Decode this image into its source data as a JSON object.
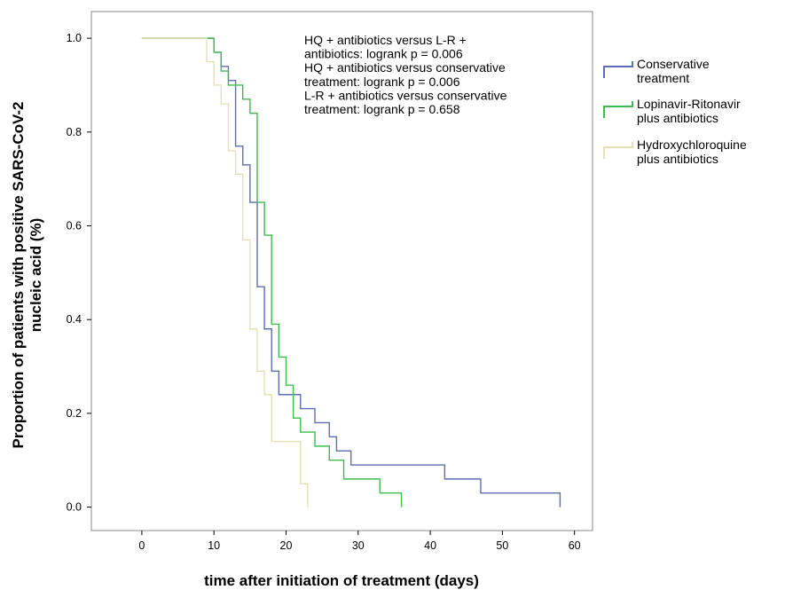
{
  "chart_data": {
    "type": "line",
    "step": true,
    "title": "",
    "xlabel": "time after initiation of treatment (days)",
    "ylabel_lines": [
      "Proportion of patients with positive SARS-CoV-2",
      "nucleic acid (%)"
    ],
    "xlim": [
      -7,
      62.5
    ],
    "ylim": [
      -0.05,
      1.057
    ],
    "x_ticks": [
      0,
      10,
      20,
      30,
      40,
      50,
      60
    ],
    "x_tick_labels": [
      "0",
      "10",
      "20",
      "30",
      "40",
      "50",
      "60"
    ],
    "y_ticks": [
      0.0,
      0.2,
      0.4,
      0.6,
      0.8,
      1.0
    ],
    "y_tick_labels": [
      "0.0",
      "0.2",
      "0.4",
      "0.6",
      "0.8",
      "1.0"
    ],
    "grid": false,
    "legend_position": "outside-right",
    "annotation_lines": [
      "HQ + antibiotics versus L-R +",
      "antibiotics: logrank p = 0.006",
      "HQ + antibiotics versus conservative",
      "treatment: logrank p = 0.006",
      "L-R + antibiotics versus conservative",
      "treatment: logrank p = 0.658"
    ],
    "series": [
      {
        "name_lines": [
          "Conservative",
          "treatment"
        ],
        "color": "#5b6dbb",
        "points": [
          [
            0,
            1.0
          ],
          [
            10,
            1.0
          ],
          [
            10,
            0.97
          ],
          [
            11,
            0.97
          ],
          [
            11,
            0.94
          ],
          [
            12,
            0.94
          ],
          [
            12,
            0.91
          ],
          [
            13,
            0.91
          ],
          [
            13,
            0.77
          ],
          [
            14,
            0.77
          ],
          [
            14,
            0.73
          ],
          [
            15,
            0.73
          ],
          [
            15,
            0.65
          ],
          [
            16,
            0.65
          ],
          [
            16,
            0.47
          ],
          [
            17,
            0.47
          ],
          [
            17,
            0.38
          ],
          [
            18,
            0.38
          ],
          [
            18,
            0.29
          ],
          [
            19,
            0.29
          ],
          [
            19,
            0.24
          ],
          [
            20,
            0.24
          ],
          [
            20,
            0.24
          ],
          [
            22,
            0.24
          ],
          [
            22,
            0.21
          ],
          [
            24,
            0.21
          ],
          [
            24,
            0.18
          ],
          [
            26,
            0.18
          ],
          [
            26,
            0.15
          ],
          [
            27,
            0.15
          ],
          [
            27,
            0.12
          ],
          [
            28,
            0.12
          ],
          [
            28,
            0.12
          ],
          [
            29,
            0.12
          ],
          [
            29,
            0.09
          ],
          [
            31,
            0.09
          ],
          [
            31,
            0.09
          ],
          [
            42,
            0.09
          ],
          [
            42,
            0.06
          ],
          [
            47,
            0.06
          ],
          [
            47,
            0.03
          ],
          [
            58,
            0.03
          ],
          [
            58,
            0.0
          ]
        ]
      },
      {
        "name_lines": [
          "Lopinavir-Ritonavir",
          "plus antibiotics"
        ],
        "color": "#3dbd4c",
        "points": [
          [
            0,
            1.0
          ],
          [
            10,
            1.0
          ],
          [
            10,
            0.97
          ],
          [
            11,
            0.97
          ],
          [
            11,
            0.93
          ],
          [
            12,
            0.93
          ],
          [
            12,
            0.9
          ],
          [
            14,
            0.9
          ],
          [
            14,
            0.87
          ],
          [
            15,
            0.87
          ],
          [
            15,
            0.84
          ],
          [
            16,
            0.84
          ],
          [
            16,
            0.65
          ],
          [
            17,
            0.65
          ],
          [
            17,
            0.58
          ],
          [
            18,
            0.58
          ],
          [
            18,
            0.39
          ],
          [
            19,
            0.39
          ],
          [
            19,
            0.32
          ],
          [
            20,
            0.32
          ],
          [
            20,
            0.26
          ],
          [
            21,
            0.26
          ],
          [
            21,
            0.19
          ],
          [
            22,
            0.19
          ],
          [
            22,
            0.16
          ],
          [
            24,
            0.16
          ],
          [
            24,
            0.13
          ],
          [
            26,
            0.13
          ],
          [
            26,
            0.1
          ],
          [
            28,
            0.1
          ],
          [
            28,
            0.06
          ],
          [
            33,
            0.06
          ],
          [
            33,
            0.03
          ],
          [
            36,
            0.03
          ],
          [
            36,
            0.0
          ]
        ]
      },
      {
        "name_lines": [
          "Hydroxychloroquine",
          "plus antibiotics"
        ],
        "color": "#e8dfb0",
        "points": [
          [
            0,
            1.0
          ],
          [
            9,
            1.0
          ],
          [
            9,
            0.95
          ],
          [
            10,
            0.95
          ],
          [
            10,
            0.9
          ],
          [
            11,
            0.9
          ],
          [
            11,
            0.86
          ],
          [
            12,
            0.86
          ],
          [
            12,
            0.76
          ],
          [
            13,
            0.76
          ],
          [
            13,
            0.71
          ],
          [
            14,
            0.71
          ],
          [
            14,
            0.57
          ],
          [
            15,
            0.57
          ],
          [
            15,
            0.38
          ],
          [
            16,
            0.38
          ],
          [
            16,
            0.29
          ],
          [
            17,
            0.29
          ],
          [
            17,
            0.24
          ],
          [
            18,
            0.24
          ],
          [
            18,
            0.14
          ],
          [
            22,
            0.14
          ],
          [
            22,
            0.05
          ],
          [
            23,
            0.05
          ],
          [
            23,
            0.0
          ]
        ]
      }
    ]
  }
}
